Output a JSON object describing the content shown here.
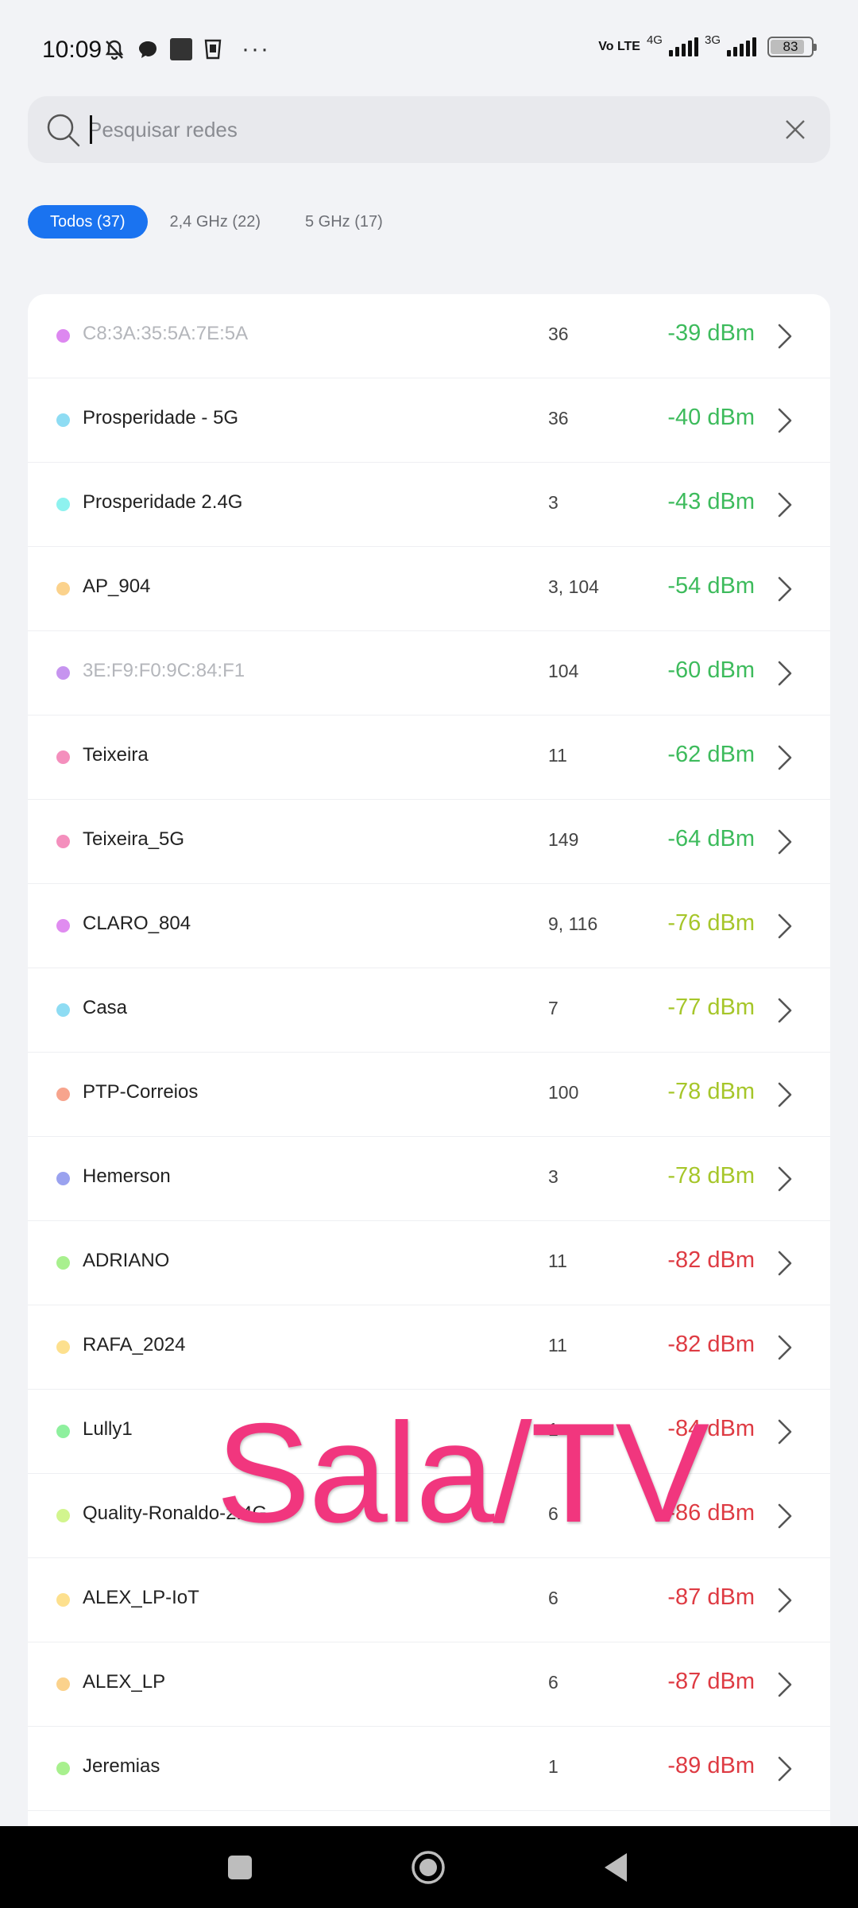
{
  "status_bar": {
    "time": "10:09",
    "volte": "Vo LTE",
    "net1": "4G",
    "net2": "3G",
    "battery": "83",
    "battery_level": 0.83,
    "icons": [
      "bell-muted-icon",
      "chat-bubble-icon",
      "square-app-icon",
      "cup-icon",
      "more-icon"
    ]
  },
  "search": {
    "placeholder": "Pesquisar redes",
    "value": ""
  },
  "tabs": [
    {
      "label": "Todos (37)",
      "active": true
    },
    {
      "label": "2,4 GHz (22)",
      "active": false
    },
    {
      "label": "5 GHz (17)",
      "active": false
    }
  ],
  "networks": [
    {
      "ssid": "C8:3A:35:5A:7E:5A",
      "channel": "36",
      "dbm": "-39 dBm",
      "dot": "#dd88f0",
      "muted": true,
      "level": "good"
    },
    {
      "ssid": "Prosperidade - 5G",
      "channel": "36",
      "dbm": "-40 dBm",
      "dot": "#8edcf3",
      "muted": false,
      "level": "good"
    },
    {
      "ssid": "Prosperidade 2.4G",
      "channel": "3",
      "dbm": "-43 dBm",
      "dot": "#8ef2ef",
      "muted": false,
      "level": "good"
    },
    {
      "ssid": "AP_904",
      "channel": "3, 104",
      "dbm": "-54 dBm",
      "dot": "#fbd28c",
      "muted": false,
      "level": "good"
    },
    {
      "ssid": "3E:F9:F0:9C:84:F1",
      "channel": "104",
      "dbm": "-60 dBm",
      "dot": "#c694ef",
      "muted": true,
      "level": "good"
    },
    {
      "ssid": "Teixeira",
      "channel": "11",
      "dbm": "-62 dBm",
      "dot": "#f48fbd",
      "muted": false,
      "level": "good"
    },
    {
      "ssid": "Teixeira_5G",
      "channel": "149",
      "dbm": "-64 dBm",
      "dot": "#f48fbd",
      "muted": false,
      "level": "good"
    },
    {
      "ssid": "CLARO_804",
      "channel": "9, 116",
      "dbm": "-76 dBm",
      "dot": "#e08cf0",
      "muted": false,
      "level": "fair"
    },
    {
      "ssid": "Casa",
      "channel": "7",
      "dbm": "-77 dBm",
      "dot": "#8edcf3",
      "muted": false,
      "level": "fair"
    },
    {
      "ssid": "PTP-Correios",
      "channel": "100",
      "dbm": "-78 dBm",
      "dot": "#f7a48d",
      "muted": false,
      "level": "fair"
    },
    {
      "ssid": "Hemerson",
      "channel": "3",
      "dbm": "-78 dBm",
      "dot": "#9aa2ef",
      "muted": false,
      "level": "fair"
    },
    {
      "ssid": "ADRIANO",
      "channel": "11",
      "dbm": "-82 dBm",
      "dot": "#a8f08e",
      "muted": false,
      "level": "weak"
    },
    {
      "ssid": "RAFA_2024",
      "channel": "11",
      "dbm": "-82 dBm",
      "dot": "#fde08e",
      "muted": false,
      "level": "weak"
    },
    {
      "ssid": "Lully1",
      "channel": "1",
      "dbm": "-84 dBm",
      "dot": "#8ef09e",
      "muted": false,
      "level": "weak"
    },
    {
      "ssid": "Quality-Ronaldo-2.4G",
      "channel": "6",
      "dbm": "-86 dBm",
      "dot": "#d2f58e",
      "muted": false,
      "level": "weak"
    },
    {
      "ssid": "ALEX_LP-IoT",
      "channel": "6",
      "dbm": "-87 dBm",
      "dot": "#fde08e",
      "muted": false,
      "level": "weak"
    },
    {
      "ssid": "ALEX_LP",
      "channel": "6",
      "dbm": "-87 dBm",
      "dot": "#fbd28c",
      "muted": false,
      "level": "weak"
    },
    {
      "ssid": "Jeremias",
      "channel": "1",
      "dbm": "-89 dBm",
      "dot": "#a8f08e",
      "muted": false,
      "level": "weak"
    }
  ],
  "level_colors": {
    "good": "#3dbb5c",
    "fair": "#a6c62a",
    "weak": "#de3b43"
  },
  "overlay_text": "Sala/TV",
  "navbar": {
    "icons": [
      "recent-apps-icon",
      "home-icon",
      "back-icon"
    ]
  }
}
